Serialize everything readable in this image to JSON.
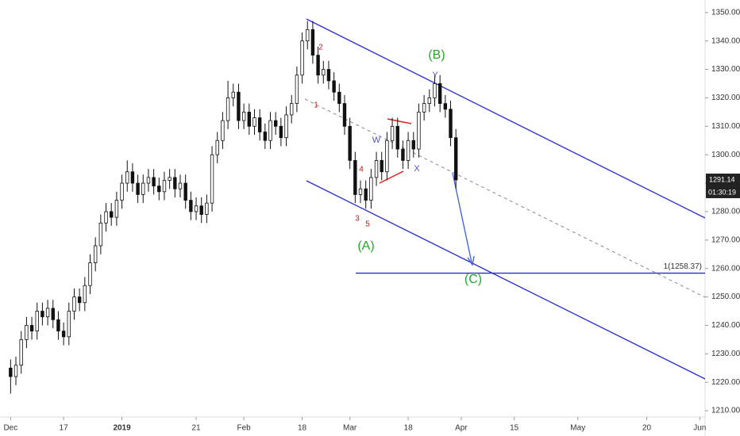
{
  "chart_data": {
    "type": "candlestick",
    "x": [
      "2018-12-03",
      "2018-12-04",
      "2018-12-05",
      "2018-12-06",
      "2018-12-07",
      "2018-12-10",
      "2018-12-11",
      "2018-12-12",
      "2018-12-13",
      "2018-12-14",
      "2018-12-17",
      "2018-12-18",
      "2018-12-19",
      "2018-12-20",
      "2018-12-21",
      "2018-12-24",
      "2018-12-25",
      "2018-12-26",
      "2018-12-27",
      "2018-12-28",
      "2018-12-31",
      "2019-01-01",
      "2019-01-02",
      "2019-01-03",
      "2019-01-04",
      "2019-01-07",
      "2019-01-08",
      "2019-01-09",
      "2019-01-10",
      "2019-01-11",
      "2019-01-14",
      "2019-01-15",
      "2019-01-16",
      "2019-01-17",
      "2019-01-18",
      "2019-01-21",
      "2019-01-22",
      "2019-01-23",
      "2019-01-24",
      "2019-01-25",
      "2019-01-28",
      "2019-01-29",
      "2019-01-30",
      "2019-01-31",
      "2019-02-01",
      "2019-02-04",
      "2019-02-05",
      "2019-02-06",
      "2019-02-07",
      "2019-02-08",
      "2019-02-11",
      "2019-02-12",
      "2019-02-13",
      "2019-02-14",
      "2019-02-15",
      "2019-02-18",
      "2019-02-19",
      "2019-02-20",
      "2019-02-21",
      "2019-02-22",
      "2019-02-25",
      "2019-02-26",
      "2019-02-27",
      "2019-02-28",
      "2019-03-01",
      "2019-03-04",
      "2019-03-05",
      "2019-03-06",
      "2019-03-07",
      "2019-03-08",
      "2019-03-11",
      "2019-03-12",
      "2019-03-13",
      "2019-03-14",
      "2019-03-15",
      "2019-03-18",
      "2019-03-19",
      "2019-03-20",
      "2019-03-21",
      "2019-03-22",
      "2019-03-25",
      "2019-03-26",
      "2019-03-27",
      "2019-03-28",
      "2019-03-29"
    ],
    "open": [
      1225,
      1222,
      1226,
      1235,
      1240,
      1238,
      1245,
      1243,
      1246,
      1242,
      1238,
      1236,
      1245,
      1250,
      1248,
      1254,
      1262,
      1268,
      1276,
      1280,
      1278,
      1284,
      1290,
      1294,
      1290,
      1286,
      1290,
      1292,
      1289,
      1287,
      1291,
      1292,
      1288,
      1290,
      1284,
      1280,
      1282,
      1279,
      1283,
      1300,
      1305,
      1312,
      1320,
      1322,
      1312,
      1315,
      1310,
      1313,
      1308,
      1305,
      1312,
      1310,
      1306,
      1314,
      1318,
      1328,
      1340,
      1344,
      1335,
      1328,
      1330,
      1326,
      1322,
      1318,
      1310,
      1298,
      1286,
      1288,
      1284,
      1292,
      1298,
      1294,
      1305,
      1310,
      1302,
      1298,
      1305,
      1302,
      1315,
      1318,
      1320,
      1325,
      1318,
      1316,
      1306
    ],
    "high": [
      1228,
      1229,
      1238,
      1243,
      1243,
      1248,
      1248,
      1249,
      1249,
      1245,
      1241,
      1248,
      1253,
      1253,
      1257,
      1265,
      1271,
      1279,
      1283,
      1283,
      1287,
      1293,
      1298,
      1297,
      1293,
      1293,
      1295,
      1295,
      1292,
      1294,
      1295,
      1295,
      1293,
      1293,
      1287,
      1285,
      1285,
      1286,
      1303,
      1308,
      1315,
      1326,
      1325,
      1325,
      1318,
      1318,
      1316,
      1316,
      1311,
      1315,
      1315,
      1313,
      1317,
      1321,
      1331,
      1343,
      1347,
      1347,
      1338,
      1333,
      1333,
      1329,
      1325,
      1321,
      1313,
      1301,
      1291,
      1291,
      1295,
      1301,
      1301,
      1308,
      1313,
      1313,
      1305,
      1308,
      1308,
      1318,
      1321,
      1323,
      1328,
      1328,
      1321,
      1319,
      1309
    ],
    "low": [
      1216,
      1219,
      1223,
      1232,
      1235,
      1235,
      1240,
      1240,
      1239,
      1235,
      1233,
      1233,
      1242,
      1245,
      1245,
      1251,
      1259,
      1265,
      1273,
      1275,
      1275,
      1281,
      1287,
      1287,
      1283,
      1283,
      1287,
      1286,
      1284,
      1284,
      1288,
      1285,
      1285,
      1281,
      1277,
      1277,
      1276,
      1276,
      1280,
      1297,
      1302,
      1309,
      1317,
      1309,
      1309,
      1307,
      1307,
      1305,
      1302,
      1302,
      1307,
      1303,
      1303,
      1311,
      1315,
      1325,
      1337,
      1332,
      1325,
      1325,
      1323,
      1319,
      1315,
      1307,
      1295,
      1283,
      1283,
      1281,
      1281,
      1289,
      1291,
      1291,
      1302,
      1299,
      1295,
      1295,
      1299,
      1299,
      1312,
      1315,
      1317,
      1315,
      1313,
      1303,
      1288
    ],
    "close": [
      1222,
      1226,
      1235,
      1240,
      1238,
      1245,
      1243,
      1246,
      1242,
      1238,
      1236,
      1245,
      1250,
      1248,
      1254,
      1262,
      1268,
      1276,
      1280,
      1278,
      1284,
      1290,
      1294,
      1290,
      1286,
      1290,
      1292,
      1289,
      1287,
      1291,
      1292,
      1288,
      1290,
      1284,
      1280,
      1282,
      1279,
      1283,
      1300,
      1305,
      1312,
      1320,
      1322,
      1312,
      1315,
      1310,
      1313,
      1308,
      1305,
      1312,
      1310,
      1306,
      1314,
      1318,
      1328,
      1340,
      1344,
      1335,
      1328,
      1330,
      1326,
      1322,
      1318,
      1310,
      1298,
      1286,
      1288,
      1284,
      1292,
      1298,
      1294,
      1305,
      1310,
      1302,
      1298,
      1305,
      1302,
      1315,
      1318,
      1320,
      1325,
      1318,
      1316,
      1306,
      1291.14
    ],
    "color": "#111111",
    "xlim": [
      "2018-11-29",
      "2019-06-04"
    ],
    "xticks": [
      {
        "value": "2018-12-03",
        "label": "Dec"
      },
      {
        "value": "2018-12-17",
        "label": "17"
      },
      {
        "value": "2019-01-01",
        "label": "2019"
      },
      {
        "value": "2019-01-21",
        "label": "21"
      },
      {
        "value": "2019-02-01",
        "label": "Feb"
      },
      {
        "value": "2019-02-18",
        "label": "18"
      },
      {
        "value": "2019-03-01",
        "label": "Mar"
      },
      {
        "value": "2019-03-18",
        "label": "18"
      },
      {
        "value": "2019-04-01",
        "label": "Apr"
      },
      {
        "value": "2019-04-15",
        "label": "15"
      },
      {
        "value": "2019-05-01",
        "label": "May"
      },
      {
        "value": "2019-05-20",
        "label": "20"
      },
      {
        "value": "2019-06-03",
        "label": "Jun"
      }
    ],
    "ylim": [
      1207.8,
      1354.4
    ],
    "yticks": [
      {
        "value": 1210,
        "label": "1210.00"
      },
      {
        "value": 1220,
        "label": "1220.00"
      },
      {
        "value": 1230,
        "label": "1230.00"
      },
      {
        "value": 1240,
        "label": "1240.00"
      },
      {
        "value": 1250,
        "label": "1250.00"
      },
      {
        "value": 1260,
        "label": "1260.00"
      },
      {
        "value": 1270,
        "label": "1270.00"
      },
      {
        "value": 1280,
        "label": "1280.00"
      },
      {
        "value": 1290,
        "label": "1290.00"
      },
      {
        "value": 1300,
        "label": "1300.00"
      },
      {
        "value": 1310,
        "label": "1310.00"
      },
      {
        "value": 1320,
        "label": "1320.00"
      },
      {
        "value": 1330,
        "label": "1330.00"
      },
      {
        "value": 1340,
        "label": "1340.00"
      },
      {
        "value": 1350,
        "label": "1350.00"
      }
    ],
    "countdown": "01:30:19",
    "level": 1258.37,
    "level_label": "1(1258.37)",
    "annotations": [
      "2",
      "1",
      "3",
      "4",
      "5",
      "(A)",
      "W",
      "X",
      "Y",
      "(B)",
      "(C)"
    ]
  }
}
